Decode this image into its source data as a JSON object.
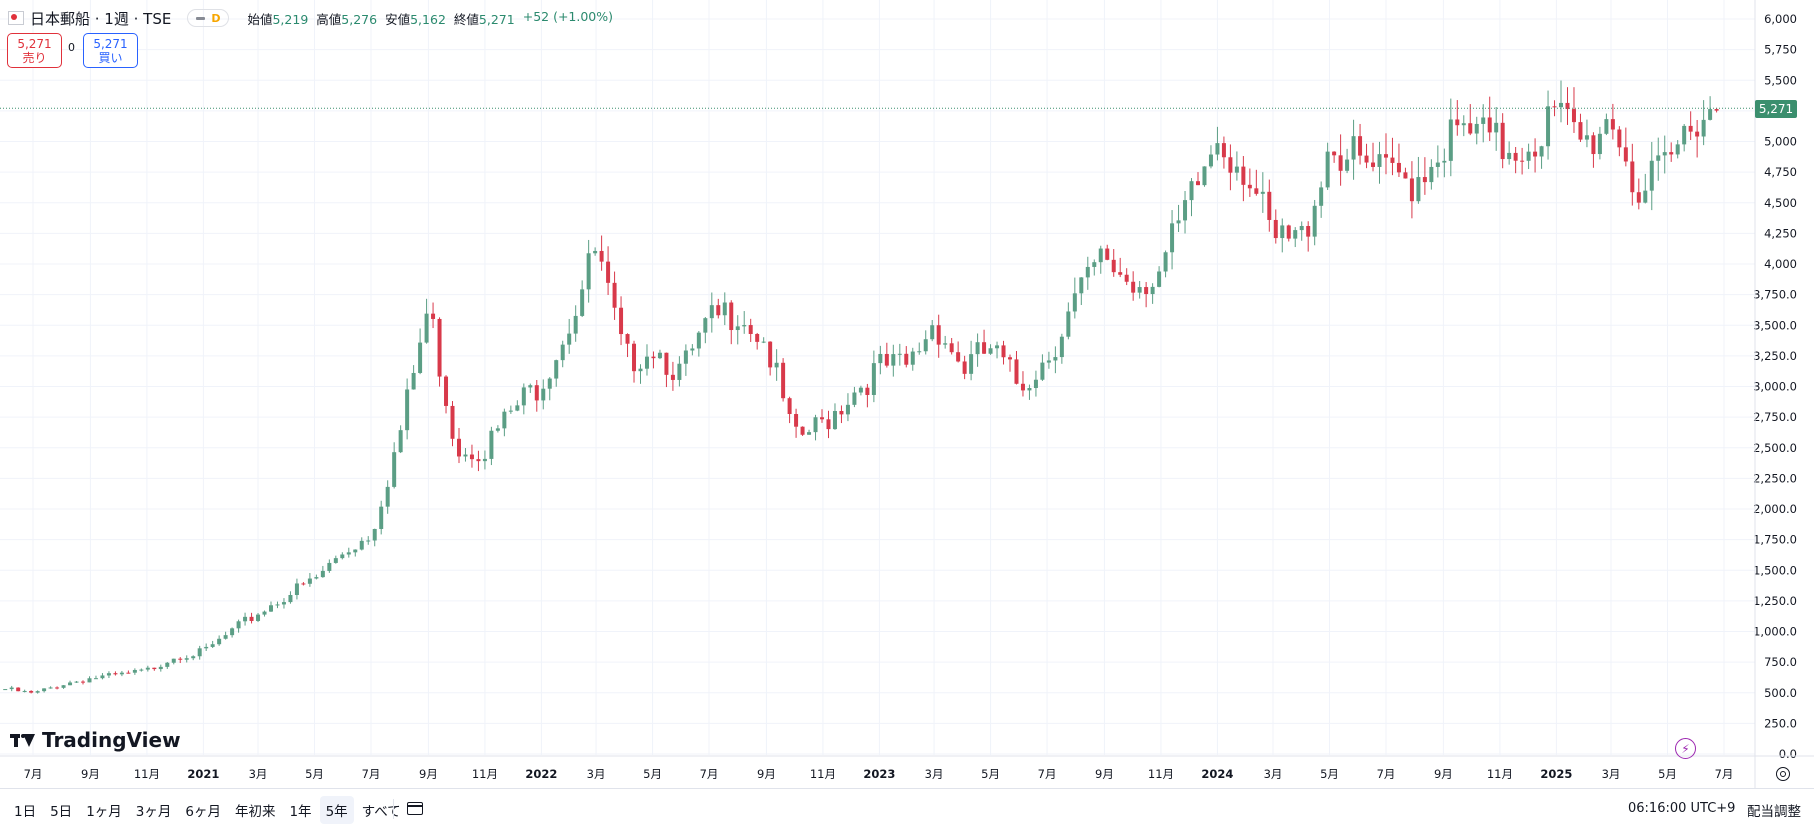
{
  "header": {
    "title": "日本郵船 · 1週 · TSE",
    "badge_letter": "D",
    "ohlc": [
      {
        "label": "始値",
        "value": "5,219"
      },
      {
        "label": "高値",
        "value": "5,276"
      },
      {
        "label": "安値",
        "value": "5,162"
      },
      {
        "label": "終値",
        "value": "5,271"
      }
    ],
    "change": "+52 (+1.00%)"
  },
  "trade": {
    "sell_price": "5,271",
    "sell_label": "売り",
    "buy_price": "5,271",
    "buy_label": "買い",
    "spread": "0"
  },
  "last_price_label": "5,271",
  "logo_text": "TradingView",
  "bottom": {
    "ranges": [
      "1日",
      "5日",
      "1ヶ月",
      "3ヶ月",
      "6ヶ月",
      "年初来",
      "1年",
      "5年",
      "すべて"
    ],
    "active_range": "5年",
    "time": "06:16:00 UTC+9",
    "adjust_label": "配当調整"
  },
  "colors": {
    "up": "#5b9e85",
    "down": "#d8394a",
    "last_price": "#3b8f6e"
  },
  "chart_data": {
    "type": "candlestick",
    "interval": "1週",
    "ylim": [
      0,
      6000
    ],
    "y_ticks": [
      0,
      250,
      500,
      750,
      1000,
      1250,
      1500,
      1750,
      2000,
      2250,
      2500,
      2750,
      3000,
      3250,
      3500,
      3750,
      4000,
      4250,
      4500,
      4750,
      5000,
      5250,
      5500,
      5750,
      6000
    ],
    "y_tick_labels": [
      "0.0",
      "250.0",
      "500.0",
      "750.0",
      "1,000.0",
      "1,250.0",
      "1,500.0",
      "1,750.0",
      "2,000.0",
      "2,250.0",
      "2,500.0",
      "2,750.0",
      "3,000.0",
      "3,250.0",
      "3,500.0",
      "3,750.0",
      "4,000",
      "4,250",
      "4,500",
      "4,750",
      "5,000",
      "5,250",
      "5,500",
      "5,750",
      "6,000"
    ],
    "x_tick_labels": [
      {
        "label": "7月",
        "date": "2020-07-01",
        "bold": false
      },
      {
        "label": "9月",
        "date": "2020-09-01",
        "bold": false
      },
      {
        "label": "11月",
        "date": "2020-11-01",
        "bold": false
      },
      {
        "label": "2021",
        "date": "2021-01-01",
        "bold": true
      },
      {
        "label": "3月",
        "date": "2021-03-01",
        "bold": false
      },
      {
        "label": "5月",
        "date": "2021-05-01",
        "bold": false
      },
      {
        "label": "7月",
        "date": "2021-07-01",
        "bold": false
      },
      {
        "label": "9月",
        "date": "2021-09-01",
        "bold": false
      },
      {
        "label": "11月",
        "date": "2021-11-01",
        "bold": false
      },
      {
        "label": "2022",
        "date": "2022-01-01",
        "bold": true
      },
      {
        "label": "3月",
        "date": "2022-03-01",
        "bold": false
      },
      {
        "label": "5月",
        "date": "2022-05-01",
        "bold": false
      },
      {
        "label": "7月",
        "date": "2022-07-01",
        "bold": false
      },
      {
        "label": "9月",
        "date": "2022-09-01",
        "bold": false
      },
      {
        "label": "11月",
        "date": "2022-11-01",
        "bold": false
      },
      {
        "label": "2023",
        "date": "2023-01-01",
        "bold": true
      },
      {
        "label": "3月",
        "date": "2023-03-01",
        "bold": false
      },
      {
        "label": "5月",
        "date": "2023-05-01",
        "bold": false
      },
      {
        "label": "7月",
        "date": "2023-07-01",
        "bold": false
      },
      {
        "label": "9月",
        "date": "2023-09-01",
        "bold": false
      },
      {
        "label": "11月",
        "date": "2023-11-01",
        "bold": false
      },
      {
        "label": "2024",
        "date": "2024-01-01",
        "bold": true
      },
      {
        "label": "3月",
        "date": "2024-03-01",
        "bold": false
      },
      {
        "label": "5月",
        "date": "2024-05-01",
        "bold": false
      },
      {
        "label": "7月",
        "date": "2024-07-01",
        "bold": false
      },
      {
        "label": "9月",
        "date": "2024-09-01",
        "bold": false
      },
      {
        "label": "11月",
        "date": "2024-11-01",
        "bold": false
      },
      {
        "label": "2025",
        "date": "2025-01-01",
        "bold": true
      },
      {
        "label": "3月",
        "date": "2025-03-01",
        "bold": false
      },
      {
        "label": "5月",
        "date": "2025-05-01",
        "bold": false
      },
      {
        "label": "7月",
        "date": "2025-07-01",
        "bold": false
      }
    ],
    "last_price": 5271,
    "monthly_closes": [
      {
        "date": "2020-06-01",
        "close": 530
      },
      {
        "date": "2020-07-01",
        "close": 490
      },
      {
        "date": "2020-08-01",
        "close": 570
      },
      {
        "date": "2020-09-01",
        "close": 620
      },
      {
        "date": "2020-10-01",
        "close": 640
      },
      {
        "date": "2020-11-01",
        "close": 680
      },
      {
        "date": "2020-12-01",
        "close": 800
      },
      {
        "date": "2021-01-01",
        "close": 830
      },
      {
        "date": "2021-02-01",
        "close": 1000
      },
      {
        "date": "2021-03-01",
        "close": 1150
      },
      {
        "date": "2021-04-01",
        "close": 1300
      },
      {
        "date": "2021-05-01",
        "close": 1420
      },
      {
        "date": "2021-06-01",
        "close": 1650
      },
      {
        "date": "2021-07-01",
        "close": 1800
      },
      {
        "date": "2021-08-01",
        "close": 2600
      },
      {
        "date": "2021-09-01",
        "close": 3650
      },
      {
        "date": "2021-10-01",
        "close": 2500
      },
      {
        "date": "2021-11-01",
        "close": 2500
      },
      {
        "date": "2021-12-01",
        "close": 2800
      },
      {
        "date": "2022-01-01",
        "close": 3050
      },
      {
        "date": "2022-02-01",
        "close": 3550
      },
      {
        "date": "2022-03-01",
        "close": 4100
      },
      {
        "date": "2022-04-01",
        "close": 3200
      },
      {
        "date": "2022-05-01",
        "close": 3350
      },
      {
        "date": "2022-06-01",
        "close": 3100
      },
      {
        "date": "2022-07-01",
        "close": 3500
      },
      {
        "date": "2022-08-01",
        "close": 3650
      },
      {
        "date": "2022-09-01",
        "close": 3350
      },
      {
        "date": "2022-10-01",
        "close": 2550
      },
      {
        "date": "2022-11-01",
        "close": 2700
      },
      {
        "date": "2022-12-01",
        "close": 2950
      },
      {
        "date": "2023-01-01",
        "close": 3150
      },
      {
        "date": "2023-02-01",
        "close": 3150
      },
      {
        "date": "2023-03-01",
        "close": 3550
      },
      {
        "date": "2023-04-01",
        "close": 3150
      },
      {
        "date": "2023-05-01",
        "close": 3300
      },
      {
        "date": "2023-06-01",
        "close": 3000
      },
      {
        "date": "2023-07-01",
        "close": 3250
      },
      {
        "date": "2023-08-01",
        "close": 3700
      },
      {
        "date": "2023-09-01",
        "close": 4050
      },
      {
        "date": "2023-10-01",
        "close": 3850
      },
      {
        "date": "2023-11-01",
        "close": 3950
      },
      {
        "date": "2023-12-01",
        "close": 4450
      },
      {
        "date": "2024-01-01",
        "close": 5050
      },
      {
        "date": "2024-02-01",
        "close": 4800
      },
      {
        "date": "2024-03-01",
        "close": 4150
      },
      {
        "date": "2024-04-01",
        "close": 4200
      },
      {
        "date": "2024-05-01",
        "close": 5000
      },
      {
        "date": "2024-06-01",
        "close": 4800
      },
      {
        "date": "2024-07-01",
        "close": 4700
      },
      {
        "date": "2024-08-01",
        "close": 4700
      },
      {
        "date": "2024-09-01",
        "close": 5000
      },
      {
        "date": "2024-10-01",
        "close": 5050
      },
      {
        "date": "2024-11-01",
        "close": 4950
      },
      {
        "date": "2024-12-01",
        "close": 5000
      },
      {
        "date": "2025-01-01",
        "close": 5200
      },
      {
        "date": "2025-02-01",
        "close": 4950
      },
      {
        "date": "2025-03-01",
        "close": 5250
      },
      {
        "date": "2025-04-01",
        "close": 4550
      },
      {
        "date": "2025-05-01",
        "close": 4750
      },
      {
        "date": "2025-06-01",
        "close": 5271
      }
    ]
  }
}
